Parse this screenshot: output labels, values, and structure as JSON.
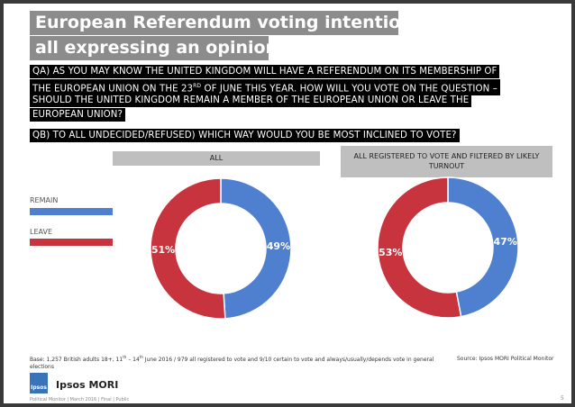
{
  "slide": {
    "title_line1": "European Referendum voting intention",
    "title_line2": "all expressing an opinion",
    "question_a": {
      "line1": "QA) AS YOU MAY KNOW THE UNITED KINGDOM WILL HAVE A REFERENDUM ON ITS MEMBERSHIP OF",
      "line2_start": "THE EUROPEAN UNION ON THE 23",
      "line2_sup": "RD",
      "line2_end": "OF JUNE THIS YEAR. HOW WILL YOU VOTE ON THE QUESTION –",
      "line3": "SHOULD THE UNITED KINGDOM REMAIN A MEMBER OF THE EUROPEAN UNION OR LEAVE THE",
      "line4": "EUROPEAN UNION?"
    },
    "question_b": "QB) TO ALL UNDECIDED/REFUSED) WHICH WAY WOULD YOU BE MOST INCLINED TO VOTE?",
    "base": [
      "Base: 1,257 British adults 18+, 11",
      "th",
      "– 14",
      "th",
      "June 2016 / 979 all registered to vote and 9/10 certain to vote and always/usually/depends vote in general elections"
    ],
    "source": "Source: Ipsos MORI Political Monitor",
    "logo": "Ipsos",
    "brand": "Ipsos MORI",
    "footer": "Political Monitor | March 2016 | Final | Public",
    "page": "5"
  },
  "chart_data": [
    {
      "type": "pie",
      "title": "ALL",
      "categories": [
        "REMAIN",
        "LEAVE"
      ],
      "values": [
        49,
        51
      ],
      "value_labels": [
        "49%",
        "51%"
      ],
      "colors": [
        "#4f7fcf",
        "#c8343e"
      ]
    },
    {
      "type": "pie",
      "title": "ALL REGISTERED TO VOTE AND FILTERED BY LIKELY TURNOUT",
      "values": [
        47,
        53
      ],
      "value_labels": [
        "47%",
        "53%"
      ],
      "colors": [
        "#4f7fcf",
        "#c8343e"
      ]
    }
  ]
}
